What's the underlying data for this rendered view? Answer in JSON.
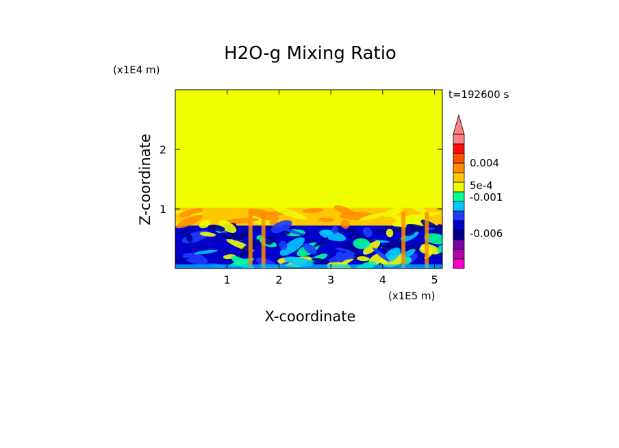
{
  "chart_data": {
    "type": "heatmap",
    "title": "H2O-g Mixing Ratio",
    "xlabel": "X-coordinate",
    "ylabel": "Z-coordinate",
    "x_scale_label": "(x1E5 m)",
    "y_scale_label": "(x1E4 m)",
    "time_label": "t=192600 s",
    "xlim": [
      0,
      5.15
    ],
    "ylim": [
      0,
      3.0
    ],
    "x_ticks": [
      "1",
      "2",
      "3",
      "4",
      "5"
    ],
    "y_ticks": [
      "1",
      "2"
    ],
    "colorbar": {
      "tick_labels": [
        "0.004",
        "5e-4",
        "-0.001",
        "-0.006"
      ],
      "levels": [
        {
          "color": "#ff00cc"
        },
        {
          "color": "#b400a8"
        },
        {
          "color": "#7a00a8"
        },
        {
          "color": "#000090"
        },
        {
          "color": "#0000c8"
        },
        {
          "color": "#1e3cff"
        },
        {
          "color": "#00c8ff"
        },
        {
          "color": "#00ff96"
        },
        {
          "color": "#f0ff00"
        },
        {
          "color": "#ffc800"
        },
        {
          "color": "#ff8c00"
        },
        {
          "color": "#ff5000"
        },
        {
          "color": "#ff0a0a"
        },
        {
          "color": "#ff8080"
        }
      ],
      "extend_top": true
    },
    "regions": [
      {
        "z_range": [
          1.02,
          3.0
        ],
        "dominant_color": "#f0ff00"
      },
      {
        "z_range": [
          0.72,
          1.02
        ],
        "dominant_color": "#ffc800"
      },
      {
        "z_range": [
          0.0,
          0.72
        ],
        "dominant_color": "#0000c8"
      }
    ]
  },
  "colors": {
    "upper": "#f0ff00",
    "middle": "#ffc800",
    "lower": "#0000c8",
    "dark": "#000090",
    "mid_blue": "#1e3cff",
    "cyan": "#00c8ff",
    "green": "#00ff96",
    "orange": "#ff8c00"
  }
}
